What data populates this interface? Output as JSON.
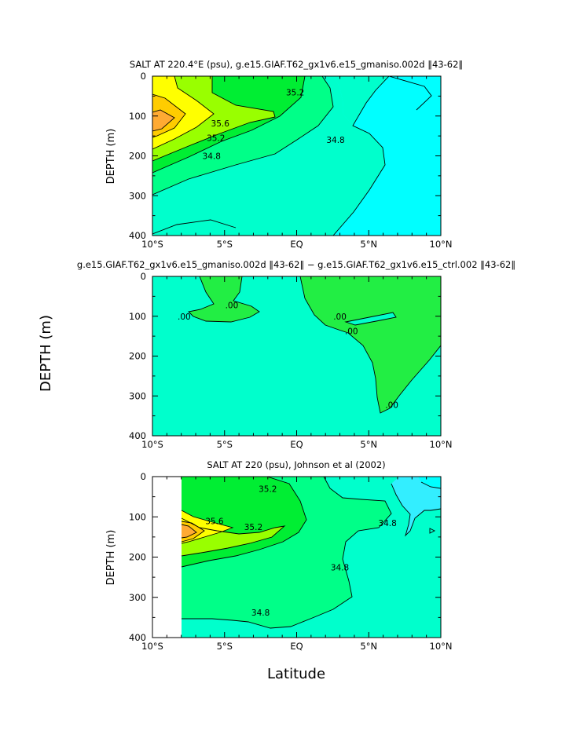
{
  "colors": {
    "c_348_350": "#00ffcc",
    "c_gt_348": "#00ffff",
    "c_350_352": "#00ff88",
    "c_352_354": "#00ee33",
    "c_354_356": "#99ff00",
    "c_356_358": "#ffff00",
    "c_358_360": "#ffcc00",
    "c_max": "#ffaa33",
    "c_diff_pos": "#22ee44",
    "c_diff_neutral": "#00ffcc",
    "c_low": "#33eeff"
  },
  "x_tick_labels": [
    "10°S",
    "5°S",
    "EQ",
    "5°N",
    "10°N"
  ],
  "y_tick_labels": [
    "0",
    "100",
    "200",
    "300",
    "400"
  ],
  "chart_data": [
    {
      "type": "contour",
      "title": "SALT AT 220.4°E (psu), g.e15.GIAF.T62_gx1v6.e15_gmaniso.002d ‖43-62‖",
      "ylabel": "DEPTH (m)",
      "xlabel": "",
      "xlim": [
        -10,
        10
      ],
      "ylim": [
        400,
        0
      ],
      "contour_labels": [
        {
          "text": "35.2",
          "lat": -0.1,
          "depth": 40
        },
        {
          "text": "35.6",
          "lat": -5.3,
          "depth": 118
        },
        {
          "text": "35.2",
          "lat": -5.6,
          "depth": 155
        },
        {
          "text": "34.8",
          "lat": 2.7,
          "depth": 160
        },
        {
          "text": "34.8",
          "lat": -5.9,
          "depth": 200
        }
      ]
    },
    {
      "type": "contour",
      "title": "g.e15.GIAF.T62_gx1v6.e15_gmaniso.002d ‖43-62‖ − g.e15.GIAF.T62_gx1v6.e15_ctrl.002 ‖43-62‖",
      "ylabel": "DEPTH (m)",
      "xlabel": "",
      "xlim": [
        -10,
        10
      ],
      "ylim": [
        400,
        0
      ],
      "contour_labels": [
        {
          "text": ".00",
          "lat": -4.5,
          "depth": 72
        },
        {
          "text": ".00",
          "lat": -7.8,
          "depth": 100
        },
        {
          "text": ".00",
          "lat": 3.0,
          "depth": 100
        },
        {
          "text": ".00",
          "lat": 3.8,
          "depth": 137
        },
        {
          "text": ".00",
          "lat": 6.6,
          "depth": 322
        }
      ]
    },
    {
      "type": "contour",
      "title": "SALT AT 220 (psu), Johnson et al (2002)",
      "ylabel": "DEPTH (m)",
      "xlabel": "Latitude",
      "xlim": [
        -10,
        10
      ],
      "ylim": [
        400,
        0
      ],
      "contour_labels": [
        {
          "text": "35.2",
          "lat": -2.0,
          "depth": 30
        },
        {
          "text": "35.6",
          "lat": -5.7,
          "depth": 110
        },
        {
          "text": "35.2",
          "lat": -3.0,
          "depth": 125
        },
        {
          "text": "34.8",
          "lat": 6.3,
          "depth": 115
        },
        {
          "text": "34.8",
          "lat": 3.0,
          "depth": 225
        },
        {
          "text": "34.8",
          "lat": -2.5,
          "depth": 338
        }
      ]
    }
  ]
}
